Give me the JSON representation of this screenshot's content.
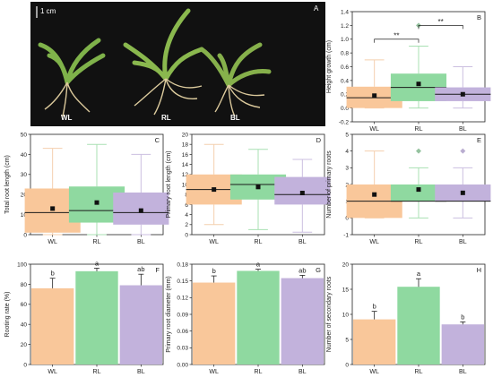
{
  "photo": {
    "panel_letter": "A",
    "scale_label": "1 cm",
    "labels": [
      "WL",
      "RL",
      "BL"
    ]
  },
  "colors": {
    "WL": "#f9c79a",
    "RL": "#8fd9a0",
    "BL": "#c2b2dc",
    "WL_whisker": "#f4cfae",
    "RL_whisker": "#a9e0b3",
    "BL_whisker": "#cbbfe0",
    "axis": "#222222",
    "photo_bg": "#111111"
  },
  "chart_data": [
    {
      "id": "B",
      "type": "box",
      "panel_letter": "B",
      "categories": [
        "WL",
        "RL",
        "BL"
      ],
      "ylabel": "Height growth (cm)",
      "ylim": [
        -0.2,
        1.4
      ],
      "yticks": [
        "-0.2",
        "0.0",
        "0.2",
        "0.4",
        "0.6",
        "0.8",
        "1.0",
        "1.2",
        "1.4"
      ],
      "boxes": [
        {
          "q1": 0.0,
          "median": 0.15,
          "q3": 0.31,
          "min": 0.0,
          "max": 0.7,
          "mean": 0.18
        },
        {
          "q1": 0.1,
          "median": 0.3,
          "q3": 0.5,
          "min": 0.0,
          "max": 0.9,
          "mean": 0.35,
          "outliers": [
            1.2
          ]
        },
        {
          "q1": 0.1,
          "median": 0.2,
          "q3": 0.3,
          "min": 0.0,
          "max": 0.6,
          "mean": 0.2
        }
      ],
      "significance": [
        {
          "from": 0,
          "to": 1,
          "label": "**",
          "y": 1.0
        },
        {
          "from": 1,
          "to": 2,
          "label": "**",
          "y": 1.2
        }
      ]
    },
    {
      "id": "C",
      "type": "box",
      "panel_letter": "C",
      "categories": [
        "WL",
        "RL",
        "BL"
      ],
      "ylabel": "Total root length (cm)",
      "ylim": [
        0,
        50
      ],
      "yticks": [
        "0",
        "10",
        "20",
        "30",
        "40",
        "50"
      ],
      "boxes": [
        {
          "q1": 1,
          "median": 11,
          "q3": 23,
          "min": 0,
          "max": 43,
          "mean": 13
        },
        {
          "q1": 6,
          "median": 12,
          "q3": 24,
          "min": 0,
          "max": 45,
          "mean": 16
        },
        {
          "q1": 5,
          "median": 11,
          "q3": 21,
          "min": 0,
          "max": 40,
          "mean": 12
        }
      ]
    },
    {
      "id": "D",
      "type": "box",
      "panel_letter": "D",
      "categories": [
        "WL",
        "RL",
        "BL"
      ],
      "ylabel": "Primary root length (cm)",
      "ylim": [
        0,
        20
      ],
      "yticks": [
        "0",
        "2",
        "4",
        "6",
        "8",
        "10",
        "12",
        "14",
        "16",
        "18",
        "20"
      ],
      "boxes": [
        {
          "q1": 6,
          "median": 9,
          "q3": 12,
          "min": 2,
          "max": 18,
          "mean": 9
        },
        {
          "q1": 7,
          "median": 10,
          "q3": 12,
          "min": 1,
          "max": 17,
          "mean": 9.5
        },
        {
          "q1": 6,
          "median": 8,
          "q3": 11.5,
          "min": 0.5,
          "max": 15,
          "mean": 8.3
        }
      ]
    },
    {
      "id": "E",
      "type": "box",
      "panel_letter": "E",
      "categories": [
        "WL",
        "RL",
        "BL"
      ],
      "ylabel": "Number of primary roots",
      "ylim": [
        -1,
        5
      ],
      "yticks": [
        "-1",
        "0",
        "1",
        "2",
        "3",
        "4",
        "5"
      ],
      "boxes": [
        {
          "q1": 0,
          "median": 1,
          "q3": 2,
          "min": 0,
          "max": 4,
          "mean": 1.4
        },
        {
          "q1": 1,
          "median": 1,
          "q3": 2,
          "min": 0,
          "max": 3,
          "mean": 1.7,
          "outliers": [
            4
          ]
        },
        {
          "q1": 1,
          "median": 1,
          "q3": 2,
          "min": 0,
          "max": 3,
          "mean": 1.5,
          "outliers": [
            4
          ]
        }
      ]
    },
    {
      "id": "F",
      "type": "bar",
      "panel_letter": "F",
      "categories": [
        "WL",
        "RL",
        "BL"
      ],
      "ylabel": "Rooting rate (%)",
      "ylim": [
        0,
        100
      ],
      "yticks": [
        "0",
        "20",
        "40",
        "60",
        "80",
        "100"
      ],
      "values": [
        76,
        93,
        79
      ],
      "errors": [
        10,
        3,
        11
      ],
      "letters": [
        "b",
        "a",
        "ab"
      ]
    },
    {
      "id": "G",
      "type": "bar",
      "panel_letter": "G",
      "categories": [
        "WL",
        "RL",
        "BL"
      ],
      "ylabel": "Primary root diameter (mm)",
      "ylim": [
        0,
        0.18
      ],
      "yticks": [
        "0.00",
        "0.03",
        "0.06",
        "0.09",
        "0.12",
        "0.15",
        "0.18"
      ],
      "values": [
        0.147,
        0.168,
        0.155
      ],
      "errors": [
        0.012,
        0.003,
        0.005
      ],
      "letters": [
        "b",
        "a",
        "ab"
      ]
    },
    {
      "id": "H",
      "type": "bar",
      "panel_letter": "H",
      "categories": [
        "WL",
        "RL",
        "BL"
      ],
      "ylabel": "Number of secondary roots",
      "ylim": [
        0,
        20
      ],
      "yticks": [
        "0",
        "5",
        "10",
        "15",
        "20"
      ],
      "values": [
        9,
        15.5,
        8
      ],
      "errors": [
        1.6,
        1.6,
        0.5
      ],
      "letters": [
        "b",
        "a",
        "b"
      ]
    }
  ]
}
